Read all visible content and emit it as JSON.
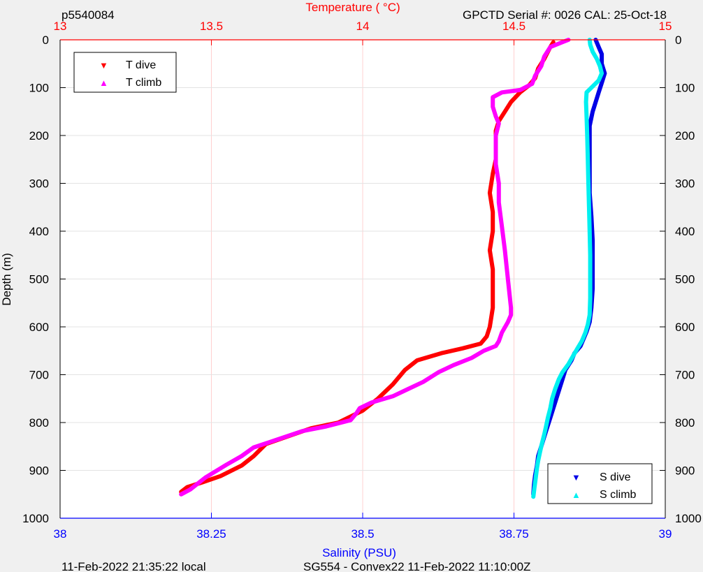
{
  "header": {
    "profile_id": "p5540084",
    "serial": "GPCTD Serial #: 0026 CAL: 25-Oct-18"
  },
  "footer": {
    "local_time": "11-Feb-2022 21:35:22 local",
    "mission": "SG554 - Convex22 11-Feb-2022 11:10:00Z"
  },
  "colors": {
    "t_dive": "#ff0000",
    "t_climb": "#ff00ff",
    "s_dive": "#0000e6",
    "s_climb": "#00f0f0",
    "temp_axis": "#ff0000",
    "sal_axis": "#0000ff"
  },
  "chart_data": {
    "type": "line",
    "ylabel": "Depth (m)",
    "ylim": [
      0,
      1000
    ],
    "y_reversed": true,
    "y_ticks": [
      0,
      100,
      200,
      300,
      400,
      500,
      600,
      700,
      800,
      900,
      1000
    ],
    "temperature_axis": {
      "label": "Temperature (    °C)",
      "lim": [
        13,
        15
      ],
      "ticks": [
        13,
        13.5,
        14,
        14.5,
        15
      ],
      "tick_labels": [
        "13",
        "13.5",
        "14",
        "14.5",
        "15"
      ],
      "position": "top",
      "grid": true
    },
    "salinity_axis": {
      "label": "Salinity (PSU)",
      "lim": [
        38,
        39
      ],
      "ticks": [
        38,
        38.25,
        38.5,
        38.75,
        39
      ],
      "tick_labels": [
        "38",
        "38.25",
        "38.5",
        "38.75",
        "39"
      ],
      "position": "bottom"
    },
    "legends": [
      {
        "placement": "top-left",
        "entries": [
          "T dive",
          "T climb"
        ]
      },
      {
        "placement": "bottom-right",
        "entries": [
          "S dive",
          "S climb"
        ]
      }
    ],
    "series": [
      {
        "name": "T dive",
        "axis": "temperature",
        "points": [
          [
            14.63,
            5
          ],
          [
            14.62,
            15
          ],
          [
            14.6,
            40
          ],
          [
            14.58,
            60
          ],
          [
            14.57,
            80
          ],
          [
            14.55,
            95
          ],
          [
            14.52,
            110
          ],
          [
            14.49,
            130
          ],
          [
            14.47,
            150
          ],
          [
            14.45,
            170
          ],
          [
            14.44,
            190
          ],
          [
            14.44,
            220
          ],
          [
            14.44,
            250
          ],
          [
            14.43,
            280
          ],
          [
            14.42,
            320
          ],
          [
            14.43,
            360
          ],
          [
            14.43,
            400
          ],
          [
            14.42,
            440
          ],
          [
            14.43,
            480
          ],
          [
            14.43,
            520
          ],
          [
            14.43,
            560
          ],
          [
            14.42,
            600
          ],
          [
            14.41,
            620
          ],
          [
            14.39,
            635
          ],
          [
            14.33,
            645
          ],
          [
            14.26,
            655
          ],
          [
            14.18,
            670
          ],
          [
            14.14,
            690
          ],
          [
            14.1,
            720
          ],
          [
            14.05,
            750
          ],
          [
            14.0,
            775
          ],
          [
            13.92,
            800
          ],
          [
            13.83,
            812
          ],
          [
            13.77,
            825
          ],
          [
            13.68,
            845
          ],
          [
            13.64,
            870
          ],
          [
            13.6,
            890
          ],
          [
            13.53,
            912
          ],
          [
            13.47,
            925
          ],
          [
            13.42,
            935
          ],
          [
            13.4,
            945
          ]
        ]
      },
      {
        "name": "T climb",
        "axis": "temperature",
        "points": [
          [
            13.4,
            950
          ],
          [
            13.43,
            940
          ],
          [
            13.48,
            915
          ],
          [
            13.55,
            888
          ],
          [
            13.6,
            870
          ],
          [
            13.64,
            852
          ],
          [
            13.72,
            835
          ],
          [
            13.8,
            818
          ],
          [
            13.88,
            808
          ],
          [
            13.96,
            795
          ],
          [
            13.98,
            780
          ],
          [
            13.99,
            770
          ],
          [
            14.03,
            758
          ],
          [
            14.1,
            745
          ],
          [
            14.15,
            730
          ],
          [
            14.2,
            715
          ],
          [
            14.25,
            695
          ],
          [
            14.3,
            680
          ],
          [
            14.36,
            665
          ],
          [
            14.4,
            650
          ],
          [
            14.44,
            640
          ],
          [
            14.45,
            630
          ],
          [
            14.46,
            612
          ],
          [
            14.48,
            590
          ],
          [
            14.49,
            575
          ],
          [
            14.49,
            560
          ],
          [
            14.48,
            500
          ],
          [
            14.47,
            440
          ],
          [
            14.46,
            390
          ],
          [
            14.45,
            340
          ],
          [
            14.45,
            300
          ],
          [
            14.44,
            260
          ],
          [
            14.44,
            220
          ],
          [
            14.44,
            200
          ],
          [
            14.45,
            175
          ],
          [
            14.44,
            160
          ],
          [
            14.43,
            140
          ],
          [
            14.43,
            120
          ],
          [
            14.46,
            110
          ],
          [
            14.52,
            105
          ],
          [
            14.56,
            92
          ],
          [
            14.57,
            75
          ],
          [
            14.59,
            55
          ],
          [
            14.6,
            35
          ],
          [
            14.62,
            15
          ],
          [
            14.66,
            5
          ],
          [
            14.68,
            0
          ]
        ]
      },
      {
        "name": "S dive",
        "axis": "salinity",
        "points": [
          [
            38.885,
            0
          ],
          [
            38.89,
            15
          ],
          [
            38.895,
            30
          ],
          [
            38.895,
            50
          ],
          [
            38.9,
            70
          ],
          [
            38.895,
            90
          ],
          [
            38.89,
            110
          ],
          [
            38.885,
            130
          ],
          [
            38.88,
            150
          ],
          [
            38.875,
            180
          ],
          [
            38.875,
            220
          ],
          [
            38.875,
            270
          ],
          [
            38.875,
            320
          ],
          [
            38.878,
            370
          ],
          [
            38.88,
            420
          ],
          [
            38.88,
            470
          ],
          [
            38.88,
            520
          ],
          [
            38.878,
            560
          ],
          [
            38.875,
            590
          ],
          [
            38.87,
            610
          ],
          [
            38.865,
            625
          ],
          [
            38.86,
            640
          ],
          [
            38.85,
            655
          ],
          [
            38.845,
            670
          ],
          [
            38.835,
            690
          ],
          [
            38.83,
            710
          ],
          [
            38.825,
            730
          ],
          [
            38.82,
            750
          ],
          [
            38.815,
            770
          ],
          [
            38.81,
            790
          ],
          [
            38.805,
            810
          ],
          [
            38.8,
            830
          ],
          [
            38.795,
            850
          ],
          [
            38.79,
            870
          ],
          [
            38.788,
            890
          ],
          [
            38.785,
            910
          ],
          [
            38.783,
            930
          ],
          [
            38.782,
            950
          ]
        ]
      },
      {
        "name": "S climb",
        "axis": "salinity",
        "points": [
          [
            38.782,
            955
          ],
          [
            38.784,
            935
          ],
          [
            38.786,
            915
          ],
          [
            38.788,
            895
          ],
          [
            38.79,
            880
          ],
          [
            38.793,
            862
          ],
          [
            38.796,
            845
          ],
          [
            38.8,
            825
          ],
          [
            38.803,
            808
          ],
          [
            38.806,
            790
          ],
          [
            38.81,
            770
          ],
          [
            38.813,
            750
          ],
          [
            38.818,
            730
          ],
          [
            38.824,
            710
          ],
          [
            38.83,
            695
          ],
          [
            38.84,
            678
          ],
          [
            38.848,
            660
          ],
          [
            38.855,
            645
          ],
          [
            38.862,
            630
          ],
          [
            38.868,
            612
          ],
          [
            38.872,
            595
          ],
          [
            38.875,
            575
          ],
          [
            38.876,
            540
          ],
          [
            38.876,
            500
          ],
          [
            38.876,
            450
          ],
          [
            38.875,
            400
          ],
          [
            38.874,
            350
          ],
          [
            38.873,
            300
          ],
          [
            38.872,
            250
          ],
          [
            38.871,
            200
          ],
          [
            38.87,
            160
          ],
          [
            38.869,
            130
          ],
          [
            38.87,
            110
          ],
          [
            38.878,
            100
          ],
          [
            38.89,
            85
          ],
          [
            38.895,
            70
          ],
          [
            38.892,
            55
          ],
          [
            38.887,
            40
          ],
          [
            38.88,
            25
          ],
          [
            38.876,
            10
          ],
          [
            38.875,
            0
          ]
        ]
      }
    ]
  }
}
